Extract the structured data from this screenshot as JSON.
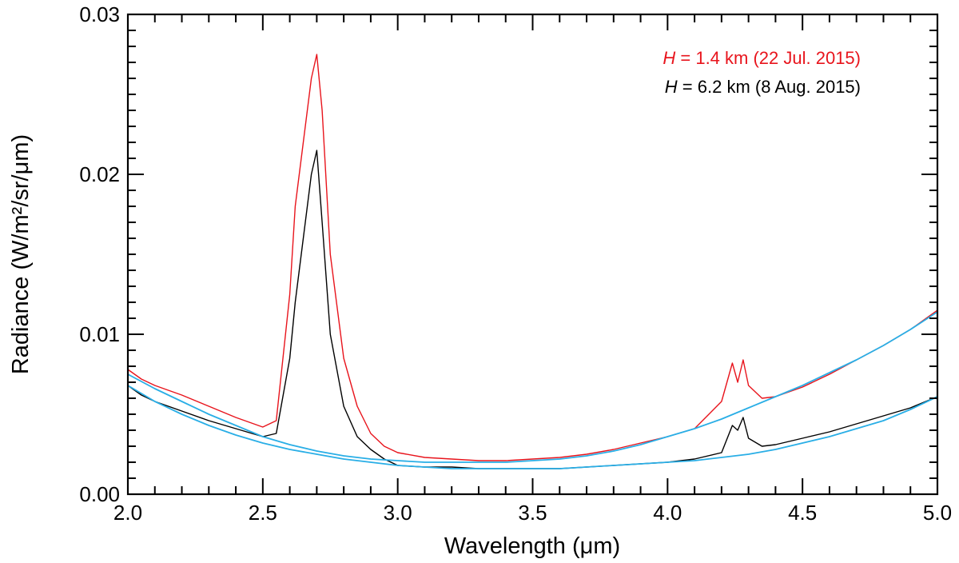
{
  "chart_data": {
    "type": "line",
    "xlabel": "Wavelength (μm)",
    "ylabel": "Radiance (W/m²/sr/μm)",
    "xlim": [
      2.0,
      5.0
    ],
    "ylim": [
      0.0,
      0.03
    ],
    "x_ticks": [
      "2.0",
      "2.5",
      "3.0",
      "3.5",
      "4.0",
      "4.5",
      "5.0"
    ],
    "y_ticks": [
      "0.00",
      "0.01",
      "0.02",
      "0.03"
    ],
    "legend_position": "top-right",
    "grid": false,
    "legend": [
      {
        "symbol": "H",
        "text": " = 1.4 km  (22 Jul. 2015)",
        "color": "#e8141c"
      },
      {
        "symbol": "H",
        "text": " = 6.2 km  (8 Aug. 2015)",
        "color": "#000000"
      }
    ],
    "series": [
      {
        "color": "#e8141c",
        "x": [
          2.0,
          2.05,
          2.1,
          2.15,
          2.2,
          2.3,
          2.4,
          2.5,
          2.55,
          2.6,
          2.62,
          2.65,
          2.68,
          2.7,
          2.72,
          2.75,
          2.8,
          2.85,
          2.9,
          2.95,
          3.0,
          3.1,
          3.2,
          3.3,
          3.4,
          3.5,
          3.6,
          3.7,
          3.8,
          3.9,
          4.0,
          4.1,
          4.2,
          4.24,
          4.26,
          4.28,
          4.3,
          4.35,
          4.4,
          4.5,
          4.6,
          4.7,
          4.8,
          4.9,
          5.0
        ],
        "values": [
          0.0078,
          0.0072,
          0.0068,
          0.0065,
          0.0062,
          0.0055,
          0.0048,
          0.0042,
          0.0046,
          0.0125,
          0.018,
          0.022,
          0.026,
          0.0275,
          0.024,
          0.015,
          0.0085,
          0.0055,
          0.0038,
          0.003,
          0.0026,
          0.0023,
          0.0022,
          0.0021,
          0.0021,
          0.0022,
          0.0023,
          0.0025,
          0.0028,
          0.0032,
          0.0036,
          0.0041,
          0.0058,
          0.0082,
          0.007,
          0.0084,
          0.0068,
          0.006,
          0.0061,
          0.0067,
          0.0075,
          0.0084,
          0.0093,
          0.0103,
          0.0115
        ]
      },
      {
        "color": "#000000",
        "x": [
          2.0,
          2.05,
          2.1,
          2.15,
          2.2,
          2.3,
          2.4,
          2.5,
          2.55,
          2.6,
          2.62,
          2.65,
          2.68,
          2.7,
          2.72,
          2.75,
          2.8,
          2.85,
          2.9,
          2.95,
          3.0,
          3.1,
          3.2,
          3.3,
          3.4,
          3.5,
          3.6,
          3.7,
          3.8,
          3.9,
          4.0,
          4.1,
          4.2,
          4.24,
          4.26,
          4.28,
          4.3,
          4.35,
          4.4,
          4.5,
          4.6,
          4.7,
          4.8,
          4.9,
          5.0
        ],
        "values": [
          0.0068,
          0.0062,
          0.0058,
          0.0055,
          0.0052,
          0.0046,
          0.0041,
          0.0036,
          0.0038,
          0.0085,
          0.012,
          0.016,
          0.02,
          0.0215,
          0.017,
          0.01,
          0.0055,
          0.0036,
          0.0028,
          0.0022,
          0.0018,
          0.0017,
          0.0017,
          0.0016,
          0.0016,
          0.0016,
          0.0016,
          0.0017,
          0.0018,
          0.0019,
          0.002,
          0.0022,
          0.0026,
          0.0043,
          0.004,
          0.0048,
          0.0035,
          0.003,
          0.0031,
          0.0035,
          0.0039,
          0.0044,
          0.0049,
          0.0054,
          0.0061
        ]
      },
      {
        "color": "#29aee6",
        "x": [
          2.0,
          2.1,
          2.2,
          2.3,
          2.4,
          2.5,
          2.6,
          2.7,
          2.8,
          2.9,
          3.0,
          3.1,
          3.2,
          3.3,
          3.4,
          3.5,
          3.6,
          3.7,
          3.8,
          3.9,
          4.0,
          4.1,
          4.2,
          4.3,
          4.4,
          4.5,
          4.6,
          4.7,
          4.8,
          4.9,
          5.0
        ],
        "values": [
          0.0075,
          0.0066,
          0.0058,
          0.005,
          0.0043,
          0.0036,
          0.0031,
          0.0027,
          0.0024,
          0.0022,
          0.0021,
          0.002,
          0.002,
          0.002,
          0.002,
          0.0021,
          0.0022,
          0.0024,
          0.0027,
          0.0031,
          0.0036,
          0.0041,
          0.0047,
          0.0054,
          0.0061,
          0.0068,
          0.0076,
          0.0084,
          0.0093,
          0.0103,
          0.0114
        ]
      },
      {
        "color": "#29aee6",
        "x": [
          2.0,
          2.1,
          2.2,
          2.3,
          2.4,
          2.5,
          2.6,
          2.7,
          2.8,
          2.9,
          3.0,
          3.1,
          3.2,
          3.3,
          3.4,
          3.5,
          3.6,
          3.7,
          3.8,
          3.9,
          4.0,
          4.1,
          4.2,
          4.3,
          4.4,
          4.5,
          4.6,
          4.7,
          4.8,
          4.9,
          5.0
        ],
        "values": [
          0.0068,
          0.0058,
          0.005,
          0.0043,
          0.0037,
          0.0032,
          0.0028,
          0.0025,
          0.0022,
          0.002,
          0.0018,
          0.0017,
          0.0016,
          0.0016,
          0.0016,
          0.0016,
          0.0016,
          0.0017,
          0.0018,
          0.0019,
          0.002,
          0.0021,
          0.0023,
          0.0025,
          0.0028,
          0.0032,
          0.0036,
          0.0041,
          0.0046,
          0.0053,
          0.0061
        ]
      }
    ]
  }
}
